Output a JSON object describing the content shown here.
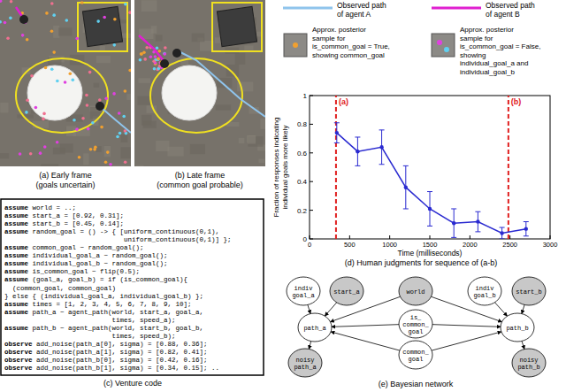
{
  "panel_a": {
    "caption": [
      "(a) Early frame",
      "(goals uncertain)"
    ]
  },
  "panel_b": {
    "caption": [
      "(b) Late frame",
      "(common goal probable)"
    ]
  },
  "legend": {
    "agent_a": {
      "lines": [
        "Observed path",
        "of agent A"
      ],
      "color": "#8fc4ec"
    },
    "agent_b": {
      "lines": [
        "Observed path",
        "of agent B"
      ],
      "color": "#e020d0"
    },
    "common_sample": {
      "lines": [
        "Approx. posterior",
        "sample for",
        "is_common_goal = True,",
        "showing common_goal"
      ]
    },
    "individual_sample": {
      "lines": [
        "Approx. posterior",
        "sample for",
        "is_common_goal = False,",
        "showing",
        "individual_goal_a and",
        "individual_goal_b"
      ]
    }
  },
  "code": {
    "caption": "(c) Venture code",
    "lines": [
      {
        "kw": "assume",
        "rest": " world = ..;"
      },
      {
        "kw": "assume",
        "rest": " start_a = [0.92, 0.31];"
      },
      {
        "kw": "assume",
        "rest": " start_b = [0.45, 0.14];"
      },
      {
        "kw": "assume",
        "rest": " random_goal = () -> { [uniform_continuous(0,1),"
      },
      {
        "rest": "                              uniform_continuous(0,1)] };"
      },
      {
        "kw": "assume",
        "rest": " common_goal ~ random_goal();"
      },
      {
        "kw": "assume",
        "rest": " individual_goal_a ~ random_goal();"
      },
      {
        "kw": "assume",
        "rest": " individual_goal_b ~ random_goal();"
      },
      {
        "kw": "assume",
        "rest": " is_common_goal ~ flip(0.5);"
      },
      {
        "kw": "assume",
        "rest": " (goal_a, goal_b) = if (is_common_goal){"
      },
      {
        "rest": "  (common_goal, common_goal)"
      },
      {
        "rest": "} else { (individual_goal_a, individual_goal_b) };"
      },
      {
        "kw": "assume",
        "rest": " times = [1, 2, 3, 4, 5, 6, 7, 8, 9, 10];"
      },
      {
        "kw": "assume",
        "rest": " path_a ~ agent_path(world, start_a, goal_a,"
      },
      {
        "rest": "                           times, speed_a);"
      },
      {
        "kw": "assume",
        "rest": " path_b ~ agent_path(world, start_b, goal_b,"
      },
      {
        "rest": "                           times, speed_b);"
      },
      {
        "kw": "observe",
        "rest": " add_noise(path_a[0], sigma) = [0.88, 0.36];"
      },
      {
        "kw": "observe",
        "rest": " add_noise(path_a[1], sigma) = [0.82, 0.41];"
      },
      {
        "kw": "observe",
        "rest": " add_noise(path_b[0], sigma) = [0.42, 0.16];"
      },
      {
        "kw": "observe",
        "rest": " add_noise(path_b[1], sigma) = [0.34, 0.15]; .."
      }
    ]
  },
  "chart_data": {
    "type": "line",
    "title": "(d) Human judgments for sequence of (a-b)",
    "x_label": "Time (milliseconds)",
    "y_label": [
      "Fraction of responses indicating",
      "individual goals more likely"
    ],
    "x": [
      340,
      600,
      900,
      1200,
      1500,
      1800,
      2100,
      2400,
      2700
    ],
    "values": [
      0.74,
      0.61,
      0.64,
      0.36,
      0.21,
      0.11,
      0.12,
      0.04,
      0.07
    ],
    "errors": [
      0.07,
      0.1,
      0.12,
      0.15,
      0.12,
      0.1,
      0.07,
      0.04,
      0.05
    ],
    "color": "#2a2ad0",
    "marker": "circle",
    "xlim": [
      0,
      3000
    ],
    "xticks": [
      0,
      500,
      1000,
      1500,
      2000,
      2500,
      3000
    ],
    "ylim": [
      0,
      1
    ],
    "yticks": [
      0,
      0.2,
      0.4,
      0.6,
      0.8,
      1
    ],
    "grid": false,
    "annotations": [
      {
        "x": 330,
        "label": "(a)",
        "color": "#e02020"
      },
      {
        "x": 2480,
        "label": "(b)",
        "color": "#e02020"
      }
    ]
  },
  "network": {
    "caption": "(e) Bayesian network",
    "nodes": [
      {
        "lines": [
          "indiv",
          "goal_a"
        ],
        "observed": false
      },
      {
        "lines": [
          "start_a"
        ],
        "observed": true
      },
      {
        "lines": [
          "world"
        ],
        "observed": true
      },
      {
        "lines": [
          "indiv",
          "goal_b"
        ],
        "observed": false
      },
      {
        "lines": [
          "start_b"
        ],
        "observed": true
      },
      {
        "lines": [
          "path_a"
        ],
        "observed": false
      },
      {
        "lines": [
          "is_",
          "common_",
          "goal"
        ],
        "observed": false
      },
      {
        "lines": [
          "path_b"
        ],
        "observed": false
      },
      {
        "lines": [
          "common_",
          "goal"
        ],
        "observed": false
      },
      {
        "lines": [
          "noisy",
          "path_a"
        ],
        "observed": true
      },
      {
        "lines": [
          "noisy",
          "path_b"
        ],
        "observed": true
      }
    ],
    "edges": [
      [
        0,
        5
      ],
      [
        1,
        5
      ],
      [
        2,
        5
      ],
      [
        2,
        7
      ],
      [
        3,
        7
      ],
      [
        4,
        7
      ],
      [
        6,
        5
      ],
      [
        6,
        7
      ],
      [
        8,
        5
      ],
      [
        8,
        7
      ],
      [
        5,
        9
      ],
      [
        7,
        10
      ]
    ]
  }
}
